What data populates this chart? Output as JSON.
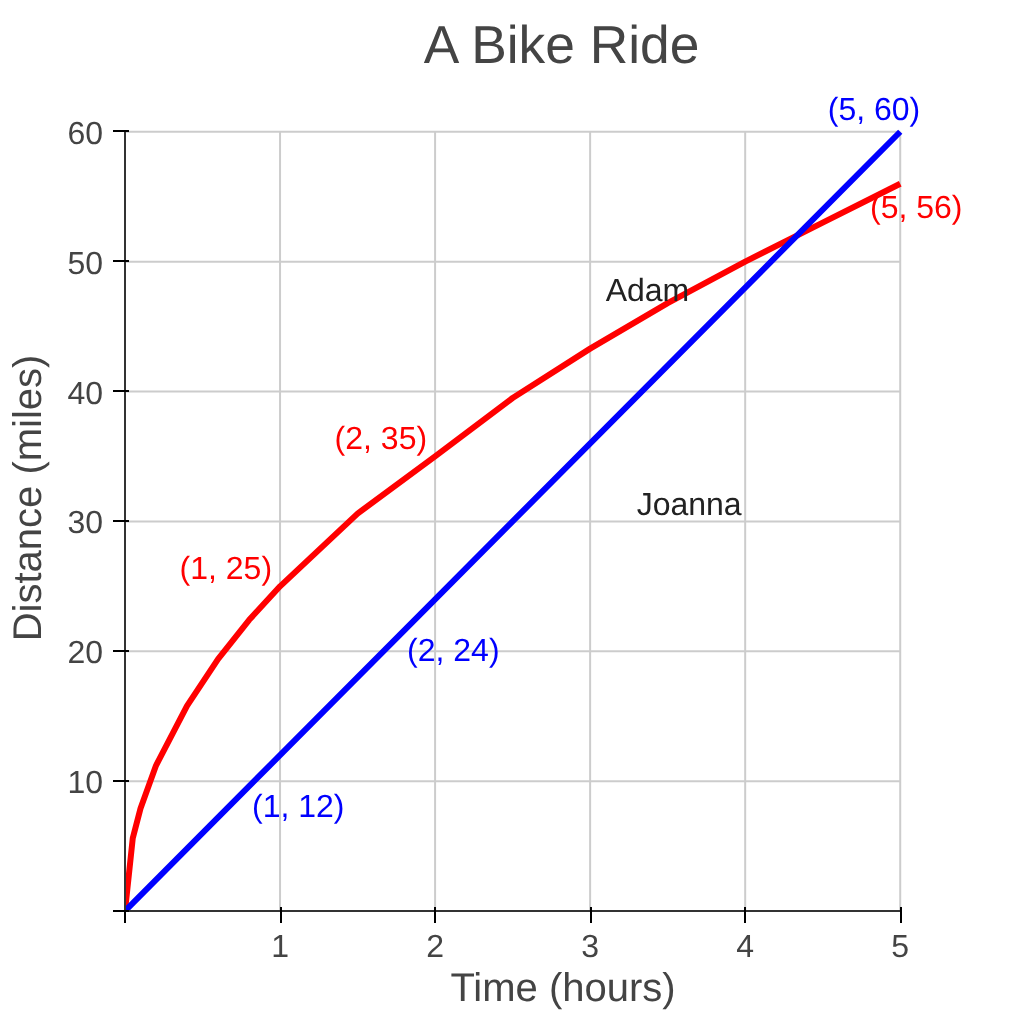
{
  "chart_data": {
    "type": "line",
    "title": "A Bike Ride",
    "xlabel": "Time (hours)",
    "ylabel": "Distance (miles)",
    "xlim": [
      0,
      5
    ],
    "ylim": [
      0,
      60
    ],
    "xticks": [
      {
        "value": 0,
        "label": null
      },
      1,
      2,
      3,
      4,
      5
    ],
    "yticks": [
      {
        "value": 0,
        "label": null
      },
      10,
      20,
      30,
      40,
      50,
      60
    ],
    "grid": true,
    "series": [
      {
        "name": "Adam",
        "color": "#ff0000",
        "x": [
          0,
          0.05,
          0.1,
          0.2,
          0.4,
          0.6,
          0.8,
          1,
          1.5,
          2,
          2.5,
          3,
          3.5,
          4,
          4.5,
          5
        ],
        "values": [
          0,
          5.6,
          7.9,
          11.2,
          15.8,
          19.4,
          22.4,
          25,
          30.6,
          35,
          39.5,
          43.3,
          46.8,
          50,
          53,
          56
        ]
      },
      {
        "name": "Joanna",
        "color": "#0000ff",
        "x": [
          0,
          1,
          2,
          5
        ],
        "values": [
          0,
          12,
          24,
          60
        ]
      }
    ],
    "annotations": [
      {
        "text": "(1, 25)",
        "x": 1,
        "y": 25
      },
      {
        "text": "(2, 35)",
        "x": 2,
        "y": 35
      },
      {
        "text": "(5, 56)",
        "x": 5,
        "y": 56
      },
      {
        "text": "(1, 12)",
        "x": 1,
        "y": 12
      },
      {
        "text": "(2, 24)",
        "x": 2,
        "y": 24
      },
      {
        "text": "(5, 60)",
        "x": 5,
        "y": 60
      }
    ]
  }
}
